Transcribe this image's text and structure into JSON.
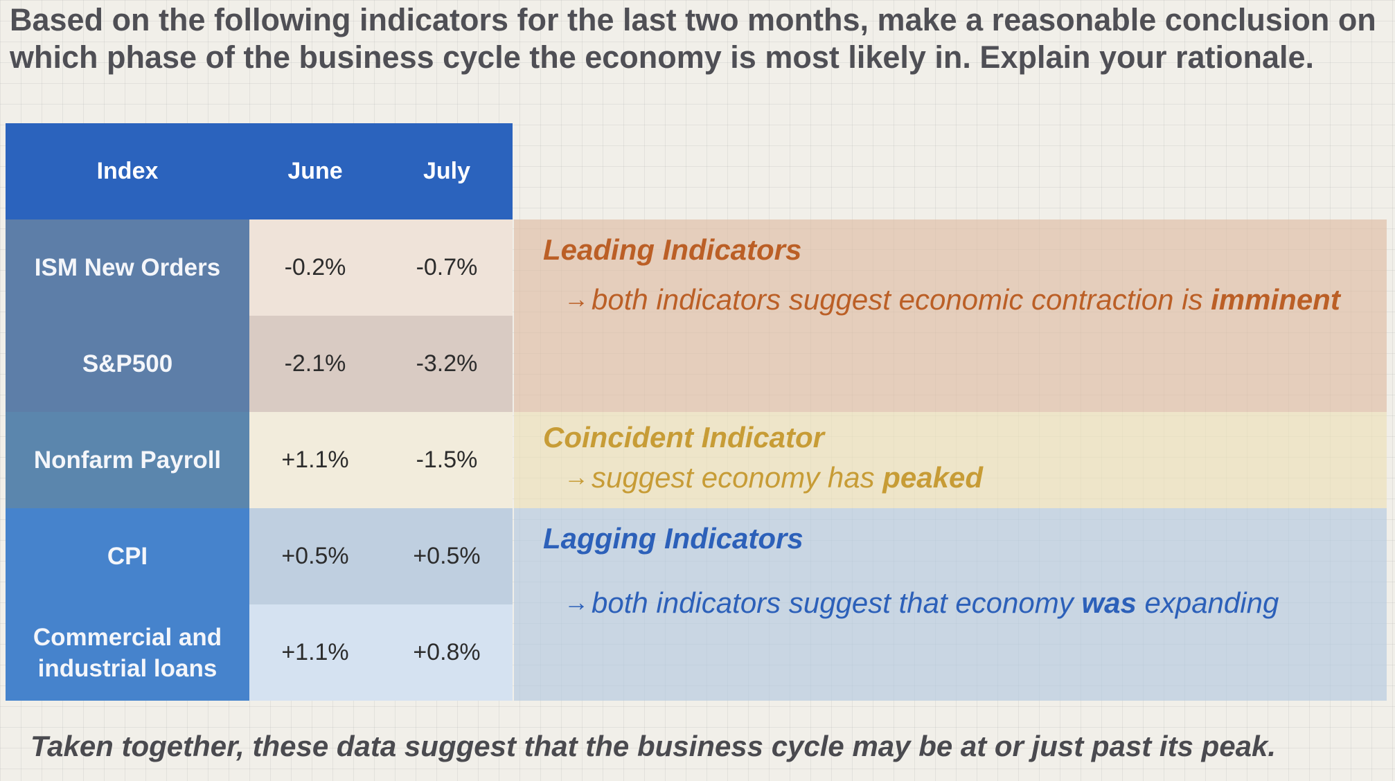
{
  "question": "Based on the following indicators for the last two months, make a reasonable conclusion on which phase of the business cycle the economy is most likely in.  Explain your rationale.",
  "table": {
    "headers": [
      "Index",
      "June",
      "July"
    ],
    "rows": [
      {
        "index": "ISM New Orders",
        "june": "-0.2%",
        "july": "-0.7%"
      },
      {
        "index": "S&P500",
        "june": "-2.1%",
        "july": "-3.2%"
      },
      {
        "index": "Nonfarm Payroll",
        "june": "+1.1%",
        "july": "-1.5%"
      },
      {
        "index": "CPI",
        "june": "+0.5%",
        "july": "+0.5%"
      },
      {
        "index": "Commercial and industrial loans",
        "june": "+1.1%",
        "july": "+0.8%"
      }
    ]
  },
  "panels": {
    "leading": {
      "title": "Leading Indicators",
      "arrow": "→",
      "text_before": "both indicators suggest economic contraction is ",
      "text_bold": "imminent",
      "text_after": "",
      "color": "#bb5f26"
    },
    "coincident": {
      "title": "Coincident Indicator",
      "arrow": "→",
      "text_before": "suggest economy has ",
      "text_bold": "peaked",
      "text_after": "",
      "color": "#c79c36"
    },
    "lagging": {
      "title": "Lagging Indicators",
      "arrow": "→",
      "text_before": "both indicators suggest that economy ",
      "text_bold": "was",
      "text_after": " expanding",
      "color": "#2c60b9"
    }
  },
  "conclusion": "Taken together, these data suggest that the business cycle may be at or just past its peak.",
  "colors": {
    "header_blue": "#2b63bd",
    "heading_gray": "#4f4f55"
  }
}
